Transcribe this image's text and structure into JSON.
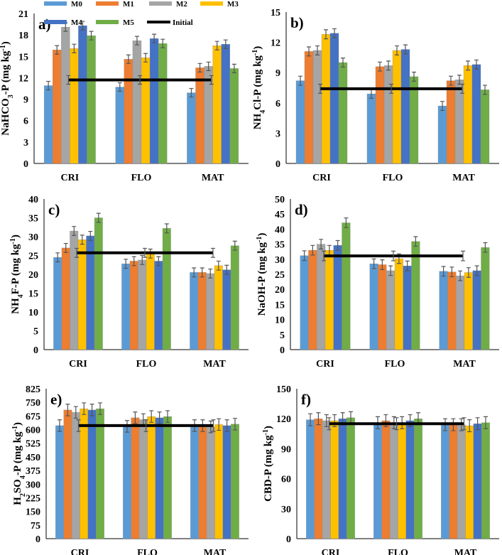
{
  "legend": {
    "entries": [
      "M0",
      "M1",
      "M2",
      "M3",
      "M4",
      "M5",
      "Initial"
    ],
    "placement": "top"
  },
  "colors": {
    "M0": "#5b9bd5",
    "M1": "#ed7d31",
    "M2": "#a5a5a5",
    "M3": "#ffc000",
    "M4": "#4472c4",
    "M5": "#70ad47",
    "Initial": "#000000",
    "error_bar": "#555555"
  },
  "chart_data": [
    {
      "type": "bar",
      "panel": "a)",
      "ylabel": "NaHCO3-P (mg kg-1)",
      "ylim": [
        0,
        21
      ],
      "yticks": [
        0,
        3,
        6,
        9,
        12,
        15,
        18,
        21
      ],
      "categories": [
        "CRI",
        "FLO",
        "MAT"
      ],
      "initial": 11.7,
      "series": [
        {
          "name": "M0",
          "values": [
            10.9,
            10.7,
            9.9
          ]
        },
        {
          "name": "M1",
          "values": [
            15.9,
            14.6,
            13.4
          ]
        },
        {
          "name": "M2",
          "values": [
            19.1,
            17.2,
            13.6
          ]
        },
        {
          "name": "M3",
          "values": [
            16.1,
            14.8,
            16.5
          ]
        },
        {
          "name": "M4",
          "values": [
            19.3,
            17.5,
            16.7
          ]
        },
        {
          "name": "M5",
          "values": [
            17.9,
            16.8,
            13.3
          ]
        }
      ],
      "error": 0.6
    },
    {
      "type": "bar",
      "panel": "b)",
      "ylabel": "NH4Cl-P (mg kg-1)",
      "ylim": [
        0,
        15
      ],
      "yticks": [
        0,
        3,
        6,
        9,
        12,
        15
      ],
      "categories": [
        "CRI",
        "FLO",
        "MAT"
      ],
      "initial": 7.4,
      "series": [
        {
          "name": "M0",
          "values": [
            8.2,
            6.9,
            5.7
          ]
        },
        {
          "name": "M1",
          "values": [
            11.1,
            9.6,
            8.2
          ]
        },
        {
          "name": "M2",
          "values": [
            11.2,
            9.7,
            8.3
          ]
        },
        {
          "name": "M3",
          "values": [
            12.8,
            11.2,
            9.7
          ]
        },
        {
          "name": "M4",
          "values": [
            12.9,
            11.3,
            9.8
          ]
        },
        {
          "name": "M5",
          "values": [
            10.0,
            8.6,
            7.3
          ]
        }
      ],
      "error": 0.45
    },
    {
      "type": "bar",
      "panel": "c)",
      "ylabel": "NH4F-P (mg kg-1)",
      "ylim": [
        0,
        40
      ],
      "yticks": [
        0,
        5,
        10,
        15,
        20,
        25,
        30,
        35,
        40
      ],
      "categories": [
        "CRI",
        "FLO",
        "MAT"
      ],
      "initial": 25.7,
      "series": [
        {
          "name": "M0",
          "values": [
            24.5,
            22.8,
            20.5
          ]
        },
        {
          "name": "M1",
          "values": [
            27.0,
            23.5,
            20.5
          ]
        },
        {
          "name": "M2",
          "values": [
            31.5,
            23.8,
            20.2
          ]
        },
        {
          "name": "M3",
          "values": [
            29.2,
            25.5,
            22.3
          ]
        },
        {
          "name": "M4",
          "values": [
            30.2,
            23.5,
            21.2
          ]
        },
        {
          "name": "M5",
          "values": [
            35.0,
            32.2,
            27.6
          ]
        }
      ],
      "error": 1.2
    },
    {
      "type": "bar",
      "panel": "d)",
      "ylabel": "NaOH-P (mg kg-1)",
      "ylim": [
        0,
        50
      ],
      "yticks": [
        0,
        5,
        10,
        15,
        20,
        25,
        30,
        35,
        40,
        45,
        50
      ],
      "categories": [
        "CRI",
        "FLO",
        "MAT"
      ],
      "initial": 31.1,
      "series": [
        {
          "name": "M0",
          "values": [
            31.2,
            28.5,
            26.0
          ]
        },
        {
          "name": "M1",
          "values": [
            33.0,
            28.2,
            25.8
          ]
        },
        {
          "name": "M2",
          "values": [
            35.0,
            26.2,
            24.5
          ]
        },
        {
          "name": "M3",
          "values": [
            33.0,
            30.2,
            25.6
          ]
        },
        {
          "name": "M4",
          "values": [
            34.6,
            27.8,
            26.2
          ]
        },
        {
          "name": "M5",
          "values": [
            42.1,
            35.9,
            33.9
          ]
        }
      ],
      "error": 1.6
    },
    {
      "type": "bar",
      "panel": "e)",
      "ylabel": "H2SO4-P (mg kg-1)",
      "ylim": [
        0,
        825
      ],
      "yticks": [
        0,
        75,
        150,
        225,
        300,
        375,
        450,
        525,
        600,
        675,
        750,
        825
      ],
      "categories": [
        "CRI",
        "FLO",
        "MAT"
      ],
      "initial": 622,
      "series": [
        {
          "name": "M0",
          "values": [
            622,
            618,
            622
          ]
        },
        {
          "name": "M1",
          "values": [
            708,
            665,
            622
          ]
        },
        {
          "name": "M2",
          "values": [
            695,
            655,
            615
          ]
        },
        {
          "name": "M3",
          "values": [
            715,
            672,
            628
          ]
        },
        {
          "name": "M4",
          "values": [
            708,
            665,
            622
          ]
        },
        {
          "name": "M5",
          "values": [
            715,
            672,
            630
          ]
        }
      ],
      "error": 32
    },
    {
      "type": "bar",
      "panel": "f)",
      "ylabel": "CBD-P (mg kg-1)",
      "ylim": [
        0,
        150
      ],
      "yticks": [
        0,
        30,
        60,
        90,
        120,
        150
      ],
      "categories": [
        "CRI",
        "FLO",
        "MAT"
      ],
      "initial": 115,
      "series": [
        {
          "name": "M0",
          "values": [
            119,
            116,
            114
          ]
        },
        {
          "name": "M1",
          "values": [
            120,
            118,
            114
          ]
        },
        {
          "name": "M2",
          "values": [
            118,
            116,
            114
          ]
        },
        {
          "name": "M3",
          "values": [
            118,
            116,
            113
          ]
        },
        {
          "name": "M4",
          "values": [
            120,
            118,
            115
          ]
        },
        {
          "name": "M5",
          "values": [
            121,
            120,
            116
          ]
        }
      ],
      "error": 6
    }
  ]
}
